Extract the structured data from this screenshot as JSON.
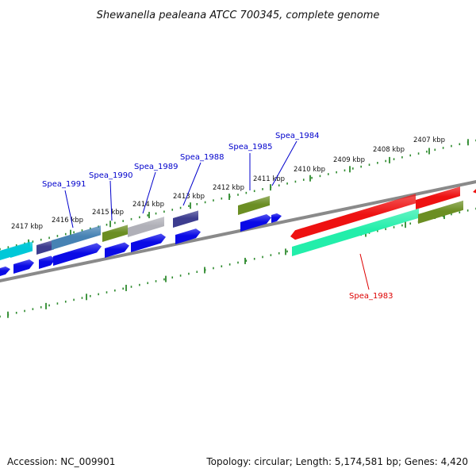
{
  "header": {
    "title": "Shewanella pealeana ATCC 700345, complete genome"
  },
  "footer": {
    "accession": "Accession: NC_009901",
    "topology": "Topology: circular; Length: 5,174,581 bp; Genes: 4,420"
  },
  "colors": {
    "backbone": "#8a8a8a",
    "tick": "#2e8b2e",
    "label_blue": "#0000cc",
    "label_red": "#dd0000",
    "gene_red": "#ee1111",
    "gene_teal": "#22eeaa",
    "gene_olive": "#6b8e23",
    "gene_blue": "#0a0ae6",
    "gene_navy": "#3d3d8f",
    "gene_steel": "#4682b4",
    "gene_cyan": "#00c8d8",
    "gene_gray": "#b0b0b8"
  },
  "scale": {
    "ticks": [
      {
        "label": "2417 kbp"
      },
      {
        "label": "2416 kbp"
      },
      {
        "label": "2415 kbp"
      },
      {
        "label": "2414 kbp"
      },
      {
        "label": "2413 kbp"
      },
      {
        "label": "2412 kbp"
      },
      {
        "label": "2411 kbp"
      },
      {
        "label": "2410 kbp"
      },
      {
        "label": "2409 kbp"
      },
      {
        "label": "2408 kbp"
      },
      {
        "label": "2407 kbp"
      }
    ]
  },
  "gene_labels": [
    {
      "name": "Spea_1991",
      "color": "#0000cc"
    },
    {
      "name": "Spea_1990",
      "color": "#0000cc"
    },
    {
      "name": "Spea_1989",
      "color": "#0000cc"
    },
    {
      "name": "Spea_1988",
      "color": "#0000cc"
    },
    {
      "name": "Spea_1985",
      "color": "#0000cc"
    },
    {
      "name": "Spea_1984",
      "color": "#0000cc"
    },
    {
      "name": "Spea_1983",
      "color": "#dd0000"
    }
  ]
}
